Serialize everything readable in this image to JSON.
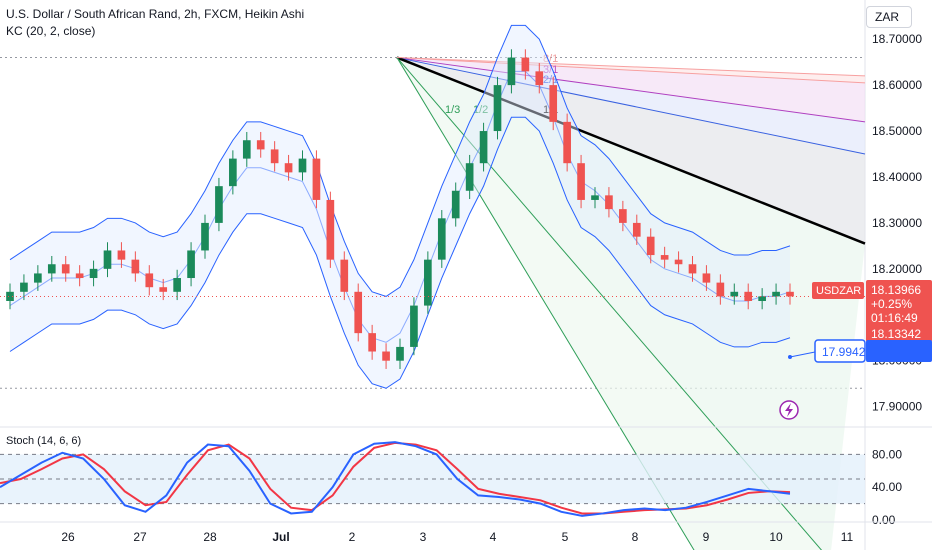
{
  "header": {
    "title": "U.S. Dollar / South African Rand, 2h, FXCM, Heikin Ashi",
    "indicator": "KC (20, 2, close)",
    "currency": "ZAR"
  },
  "stoch": {
    "label": "Stoch (14, 6, 6)",
    "ticks": [
      "80.00",
      "40.00",
      "0.00"
    ]
  },
  "price_axis": {
    "ticks": [
      "18.70000",
      "18.60000",
      "18.50000",
      "18.40000",
      "18.30000",
      "18.20000",
      "18.00000",
      "17.90000"
    ]
  },
  "time_axis": {
    "ticks": [
      "26",
      "27",
      "28",
      "Jul",
      "2",
      "3",
      "4",
      "5",
      "8",
      "9",
      "10",
      "11"
    ]
  },
  "tags": {
    "symbol": "USDZAR",
    "last": "18.13966",
    "change": "+0.25%",
    "countdown": "01:16:49",
    "low": "18.13342",
    "target": "17.9942"
  },
  "fan_labels": [
    "3/1",
    "2/1",
    "1/1",
    "1/2",
    "1/3"
  ],
  "faded_fan_labels": [
    "8/1"
  ],
  "colors": {
    "up": "#26a69a",
    "up_dark": "#1b8a5a",
    "down": "#ef5350",
    "channel": "#2962ff",
    "stoch_k": "#2962ff",
    "stoch_d": "#f23645",
    "fan_main": "#000000",
    "accent": "#9c27b0"
  },
  "chart_data": {
    "type": "candlestick",
    "title": "U.S. Dollar / South African Rand, 2h, FXCM, Heikin Ashi",
    "symbol": "USDZAR",
    "x_ticks": [
      "26",
      "27",
      "28",
      "Jul",
      "2",
      "3",
      "4",
      "5",
      "8",
      "9",
      "10",
      "11"
    ],
    "ylim": [
      17.86,
      18.72
    ],
    "y_ticks": [
      18.7,
      18.6,
      18.5,
      18.4,
      18.3,
      18.2,
      18.0,
      17.9
    ],
    "candles_close": [
      18.15,
      18.17,
      18.19,
      18.21,
      18.19,
      18.18,
      18.2,
      18.24,
      18.22,
      18.19,
      18.16,
      18.15,
      18.18,
      18.24,
      18.3,
      18.38,
      18.44,
      18.48,
      18.46,
      18.43,
      18.41,
      18.44,
      18.35,
      18.22,
      18.15,
      18.06,
      18.02,
      18.0,
      18.03,
      18.12,
      18.22,
      18.31,
      18.37,
      18.43,
      18.5,
      18.6,
      18.66,
      18.63,
      18.6,
      18.52,
      18.43,
      18.35,
      18.36,
      18.33,
      18.3,
      18.27,
      18.23,
      18.22,
      18.21,
      18.19,
      18.17,
      18.14,
      18.15,
      18.13,
      18.14,
      18.15,
      18.14
    ],
    "keltner": {
      "middle": [
        18.12,
        18.14,
        18.16,
        18.18,
        18.18,
        18.18,
        18.19,
        18.21,
        18.21,
        18.2,
        18.18,
        18.17,
        18.18,
        18.22,
        18.27,
        18.33,
        18.38,
        18.42,
        18.42,
        18.41,
        18.4,
        18.39,
        18.33,
        18.24,
        18.16,
        18.09,
        18.05,
        18.04,
        18.06,
        18.12,
        18.2,
        18.28,
        18.35,
        18.42,
        18.48,
        18.56,
        18.63,
        18.63,
        18.6,
        18.53,
        18.45,
        18.39,
        18.37,
        18.34,
        18.3,
        18.26,
        18.22,
        18.2,
        18.19,
        18.18,
        18.16,
        18.14,
        18.13,
        18.13,
        18.14,
        18.14,
        18.15
      ],
      "upper_offset": 0.1,
      "lower_offset": 0.1
    },
    "gann_fan": {
      "origin_price": 18.66,
      "angles": [
        "8/1",
        "3/1",
        "2/1",
        "1/1",
        "1/2",
        "1/3"
      ]
    },
    "last_price": 18.13966,
    "stochastic": {
      "name": "Stoch (14, 6, 6)",
      "ylim": [
        0,
        100
      ],
      "y_ticks": [
        80,
        40,
        0
      ],
      "k": [
        40,
        55,
        70,
        82,
        75,
        50,
        18,
        10,
        30,
        70,
        92,
        90,
        60,
        20,
        8,
        10,
        40,
        80,
        93,
        95,
        90,
        80,
        50,
        30,
        28,
        25,
        20,
        10,
        5,
        8,
        12,
        14,
        12,
        15,
        22,
        30,
        38,
        35,
        32
      ],
      "d": [
        45,
        50,
        62,
        75,
        80,
        62,
        35,
        18,
        22,
        55,
        85,
        92,
        75,
        38,
        15,
        12,
        30,
        65,
        88,
        94,
        92,
        85,
        62,
        38,
        32,
        28,
        24,
        15,
        8,
        8,
        10,
        12,
        13,
        14,
        18,
        25,
        33,
        35,
        34
      ]
    }
  }
}
